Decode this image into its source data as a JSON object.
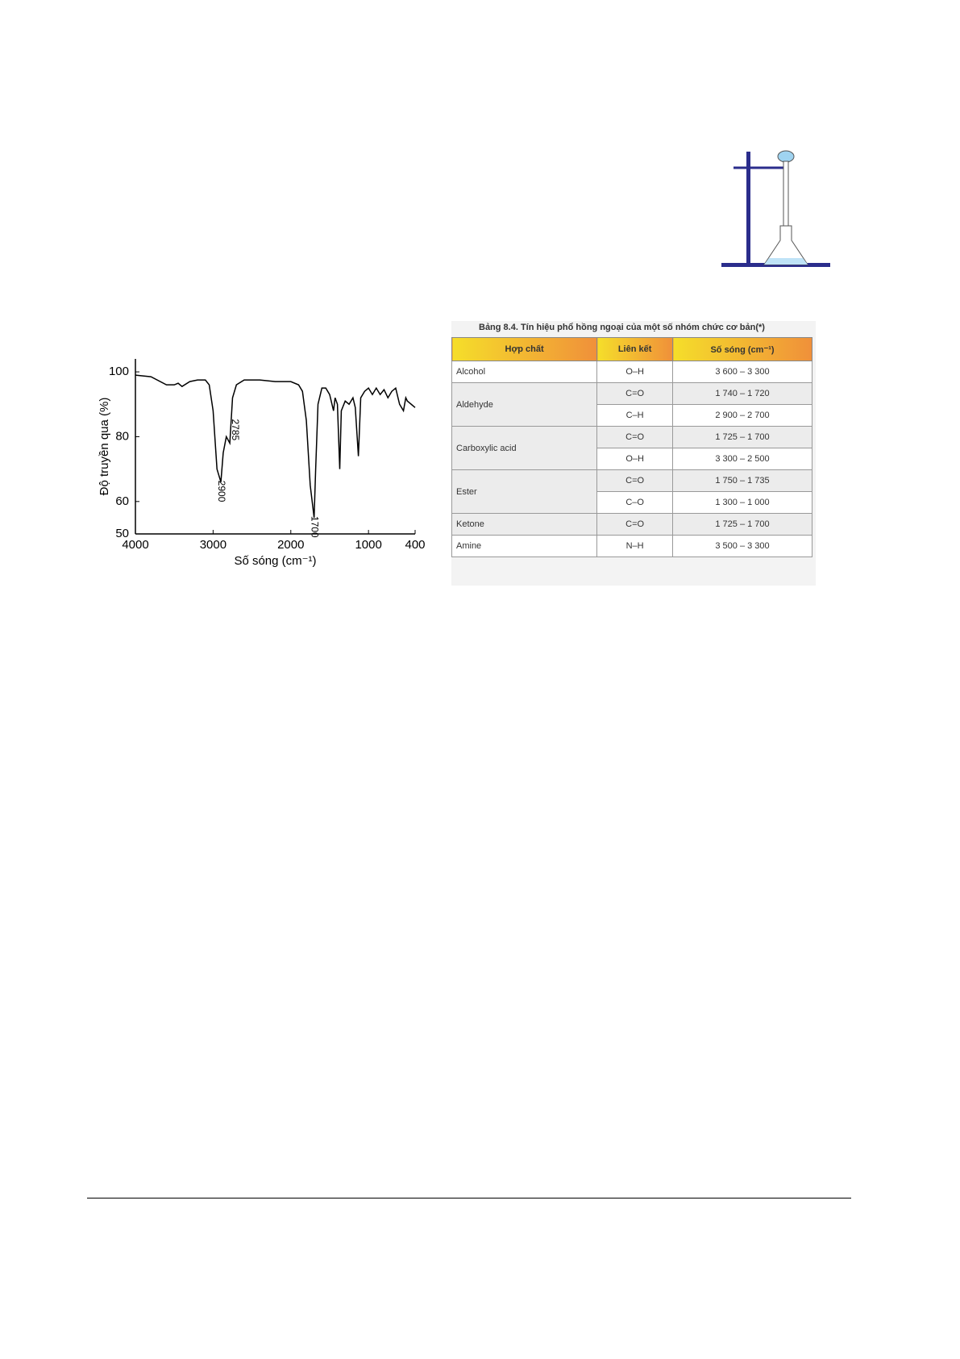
{
  "chart_data": {
    "type": "line",
    "ylabel": "Độ truyền qua (%)",
    "xlabel": "Số sóng (cm⁻¹)",
    "x": [
      4000,
      3800,
      3600,
      3500,
      3450,
      3400,
      3300,
      3200,
      3100,
      3050,
      3000,
      2950,
      2900,
      2870,
      2830,
      2785,
      2750,
      2700,
      2600,
      2400,
      2200,
      2000,
      1900,
      1850,
      1800,
      1750,
      1700,
      1680,
      1650,
      1600,
      1550,
      1500,
      1450,
      1430,
      1400,
      1370,
      1350,
      1300,
      1250,
      1200,
      1170,
      1130,
      1100,
      1050,
      1000,
      950,
      900,
      850,
      800,
      750,
      700,
      650,
      600,
      550,
      520,
      500,
      450,
      400
    ],
    "values": [
      99,
      98.5,
      96,
      96,
      96.5,
      95.5,
      97,
      97.5,
      97.5,
      96,
      88,
      70,
      66,
      75,
      80,
      78,
      92,
      96,
      97.5,
      97.5,
      97,
      97,
      96,
      94,
      85,
      65,
      55,
      70,
      90,
      95,
      95,
      93,
      88,
      92,
      90,
      70,
      88,
      91,
      90,
      92,
      89,
      74,
      92,
      94,
      95,
      93,
      95,
      93,
      94.5,
      92,
      94,
      95,
      90,
      88,
      92,
      91,
      90,
      89
    ],
    "color": "#000000",
    "xlim": [
      4000,
      400
    ],
    "xticks": [
      4000,
      3000,
      2000,
      1000,
      400
    ],
    "ylim": [
      50,
      104
    ],
    "yticks": [
      50,
      60,
      80,
      100
    ],
    "peak_labels": [
      2900,
      2785,
      1700
    ]
  },
  "table": {
    "title": "Bảng 8.4. Tín hiệu phổ hồng ngoại của một số nhóm chức cơ bản(*)",
    "header": [
      "Hợp chất",
      "Liên kết",
      "Số sóng (cm⁻¹)"
    ],
    "groups": [
      {
        "compound": "Alcohol",
        "bonds": [
          {
            "bond": "O–H",
            "range": "3 600 – 3 300"
          }
        ]
      },
      {
        "compound": "Aldehyde",
        "bonds": [
          {
            "bond": "C=O",
            "range": "1 740 – 1 720"
          },
          {
            "bond": "C–H",
            "range": "2 900 – 2 700"
          }
        ]
      },
      {
        "compound": "Carboxylic acid",
        "bonds": [
          {
            "bond": "C=O",
            "range": "1 725 – 1 700"
          },
          {
            "bond": "O–H",
            "range": "3 300 – 2 500"
          }
        ]
      },
      {
        "compound": "Ester",
        "bonds": [
          {
            "bond": "C=O",
            "range": "1 750 – 1 735"
          },
          {
            "bond": "C–O",
            "range": "1 300 – 1 000"
          }
        ]
      },
      {
        "compound": "Ketone",
        "bonds": [
          {
            "bond": "C=O",
            "range": "1 725 – 1 700"
          }
        ]
      },
      {
        "compound": "Amine",
        "bonds": [
          {
            "bond": "N–H",
            "range": "3 500 – 3 300"
          }
        ]
      }
    ]
  }
}
